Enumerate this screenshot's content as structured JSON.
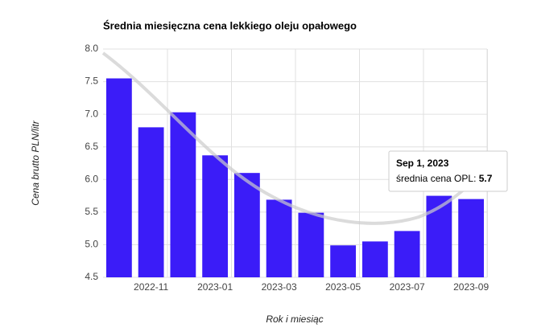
{
  "chart_data": {
    "type": "bar",
    "title": "Średnia miesięczna cena lekkiego oleju opałowego",
    "x_label": "Rok i miesiąc",
    "y_label": "Cena brutto PLN/litr",
    "categories": [
      null,
      "2022-11",
      null,
      "2023-01",
      null,
      "2023-03",
      null,
      "2023-05",
      null,
      "2023-07",
      null,
      "2023-09"
    ],
    "series": [
      {
        "name": "średnia cena OPL",
        "color": "#3b1cf8",
        "values": [
          7.55,
          6.8,
          7.03,
          6.37,
          6.1,
          5.69,
          5.49,
          4.99,
          5.05,
          5.21,
          5.75,
          5.7
        ]
      }
    ],
    "ylim": [
      4.5,
      8.0
    ],
    "yticks": [
      {
        "value": 4.5,
        "label": "4.5"
      },
      {
        "value": 5,
        "label": "5.0"
      },
      {
        "value": 5.5,
        "label": "5.5"
      },
      {
        "value": 6,
        "label": "6.0"
      },
      {
        "value": 6.5,
        "label": "6.5"
      },
      {
        "value": 7,
        "label": "7.0"
      },
      {
        "value": 7.5,
        "label": "7.5"
      },
      {
        "value": 8,
        "label": "8.0"
      }
    ],
    "grid": true,
    "tooltip": {
      "title": "Sep 1, 2023"
    }
  }
}
